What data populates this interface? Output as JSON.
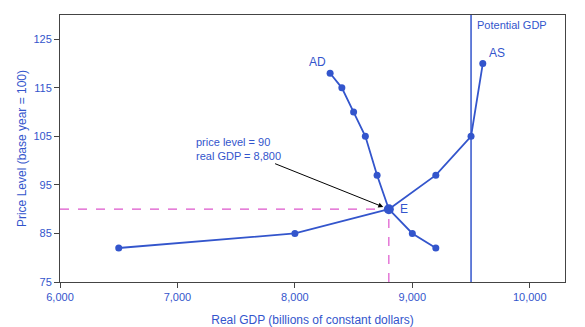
{
  "chart_data": {
    "type": "line",
    "color": "#3355cc",
    "xlabel": "Real GDP (billions of constant dollars)",
    "ylabel": "Price Level (base year = 100)",
    "grid": false,
    "xlim": [
      6000,
      10300
    ],
    "ylim": [
      75,
      130
    ],
    "xticks": [
      {
        "value": 6000,
        "label": "6,000"
      },
      {
        "value": 7000,
        "label": "7,000"
      },
      {
        "value": 8000,
        "label": "8,000"
      },
      {
        "value": 9000,
        "label": "9,000"
      },
      {
        "value": 10000,
        "label": "10,000"
      }
    ],
    "yticks": [
      75,
      85,
      95,
      105,
      115,
      125
    ],
    "series": [
      {
        "name": "AD",
        "color": "#3355cc",
        "marker": "circle",
        "line_style": "solid",
        "x": [
          8300,
          8400,
          8500,
          8600,
          8700,
          8800
        ],
        "values": [
          118,
          115,
          110,
          105,
          97,
          90
        ]
      },
      {
        "color": "#3355cc",
        "marker": "circle",
        "line_style": "solid",
        "x": [
          6500,
          8000,
          8800
        ],
        "values": [
          82,
          85,
          90
        ]
      },
      {
        "name": "AS",
        "color": "#3355cc",
        "marker": "circle",
        "line_style": "solid",
        "x": [
          8800,
          9200,
          9500,
          9600
        ],
        "values": [
          90,
          97,
          105,
          120
        ]
      },
      {
        "color": "#3355cc",
        "marker": "circle",
        "line_style": "solid",
        "x": [
          8800,
          9000,
          9200
        ],
        "values": [
          90,
          85,
          82
        ]
      }
    ],
    "points": [
      {
        "x": 8800,
        "y": 90,
        "label": "E",
        "color": "#3355cc",
        "marker": "circle",
        "guides": {
          "color": "#dd55cc",
          "line_style": "dashed"
        }
      }
    ],
    "vlines": [
      {
        "x": 9500,
        "label": "Potential GDP",
        "color": "#3355cc",
        "line_style": "solid"
      }
    ],
    "annotations": [
      {
        "text": "price level = 90\nreal GDP = 8,800",
        "x": 8800,
        "y": 90
      }
    ]
  }
}
